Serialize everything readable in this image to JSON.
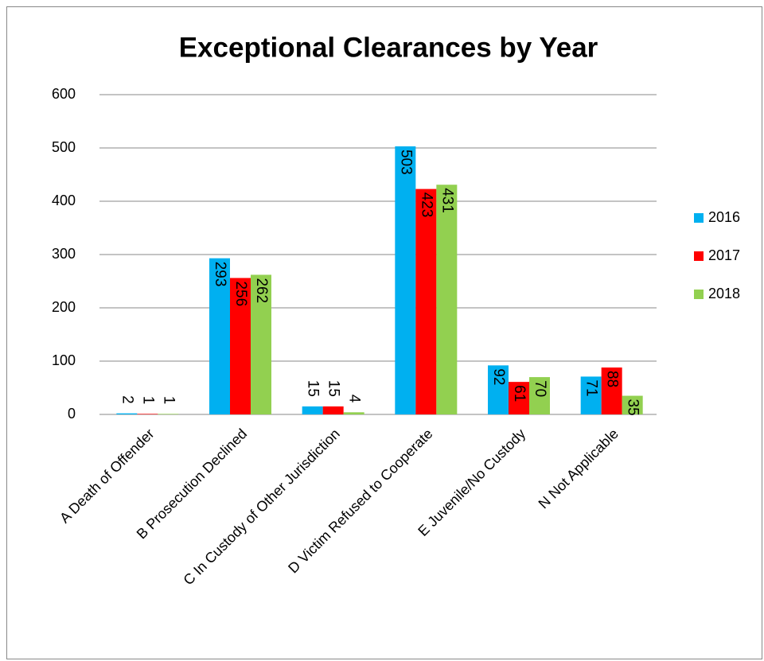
{
  "chart_data": {
    "type": "bar",
    "title": "Exceptional Clearances by Year",
    "categories": [
      "A Death of Offender",
      "B Prosecution Declined",
      "C In Custody of Other Jurisdiction",
      "D Victim Refused to Cooperate",
      "E Juvenile/No Custody",
      "N Not Applicable"
    ],
    "series": [
      {
        "name": "2016",
        "color": "#00b0f0",
        "values": [
          2,
          293,
          15,
          503,
          92,
          71
        ]
      },
      {
        "name": "2017",
        "color": "#ff0000",
        "values": [
          1,
          256,
          15,
          423,
          61,
          88
        ]
      },
      {
        "name": "2018",
        "color": "#92d050",
        "values": [
          1,
          262,
          4,
          431,
          70,
          35
        ]
      }
    ],
    "ylim": [
      0,
      600
    ],
    "yticks": [
      0,
      100,
      200,
      300,
      400,
      500,
      600
    ],
    "grid": true,
    "legend": "right"
  }
}
